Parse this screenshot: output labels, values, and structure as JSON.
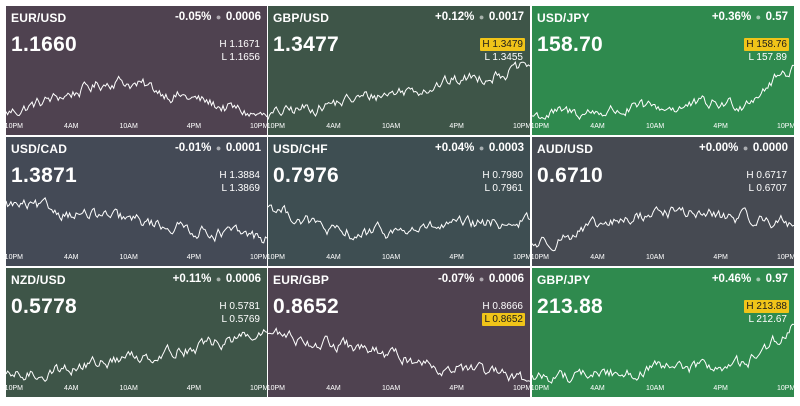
{
  "axis_ticks": [
    "10PM",
    "4AM",
    "10AM",
    "4PM",
    "10PM"
  ],
  "tiles": [
    {
      "pair": "EUR/USD",
      "change_pct": "-0.05%",
      "change_abs": "0.0006",
      "price": "1.1660",
      "high": "H 1.1671",
      "low": "L 1.1656",
      "high_highlight": false,
      "low_highlight": false,
      "bg": "#4f4250",
      "trend": "up-then-down"
    },
    {
      "pair": "GBP/USD",
      "change_pct": "+0.12%",
      "change_abs": "0.0017",
      "price": "1.3477",
      "high": "H 1.3479",
      "low": "L 1.3455",
      "high_highlight": true,
      "low_highlight": false,
      "bg": "#3e5548",
      "trend": "rising"
    },
    {
      "pair": "USD/JPY",
      "change_pct": "+0.36%",
      "change_abs": "0.57",
      "price": "158.70",
      "high": "H 158.76",
      "low": "L 157.89",
      "high_highlight": true,
      "low_highlight": false,
      "bg": "#2f8a4e",
      "trend": "late-surge"
    },
    {
      "pair": "USD/CAD",
      "change_pct": "-0.01%",
      "change_abs": "0.0001",
      "price": "1.3871",
      "high": "H 1.3884",
      "low": "L 1.3869",
      "high_highlight": false,
      "low_highlight": false,
      "bg": "#444a56",
      "trend": "choppy-down"
    },
    {
      "pair": "USD/CHF",
      "change_pct": "+0.04%",
      "change_abs": "0.0003",
      "price": "0.7976",
      "high": "H 0.7980",
      "low": "L 0.7961",
      "high_highlight": false,
      "low_highlight": false,
      "bg": "#3e4e52",
      "trend": "dip-recover"
    },
    {
      "pair": "AUD/USD",
      "change_pct": "+0.00%",
      "change_abs": "0.0000",
      "price": "0.6710",
      "high": "H 0.6717",
      "low": "L 0.6707",
      "high_highlight": false,
      "low_highlight": false,
      "bg": "#464a52",
      "trend": "mid-bump"
    },
    {
      "pair": "NZD/USD",
      "change_pct": "+0.11%",
      "change_abs": "0.0006",
      "price": "0.5778",
      "high": "H 0.5781",
      "low": "L 0.5769",
      "high_highlight": false,
      "low_highlight": false,
      "bg": "#3e5548",
      "trend": "steady-rise"
    },
    {
      "pair": "EUR/GBP",
      "change_pct": "-0.07%",
      "change_abs": "0.0006",
      "price": "0.8652",
      "high": "H 0.8666",
      "low": "L 0.8652",
      "high_highlight": false,
      "low_highlight": true,
      "bg": "#4f4250",
      "trend": "falling"
    },
    {
      "pair": "GBP/JPY",
      "change_pct": "+0.46%",
      "change_abs": "0.97",
      "price": "213.88",
      "high": "H 213.88",
      "low": "L 212.67",
      "high_highlight": true,
      "low_highlight": false,
      "bg": "#2f8a4e",
      "trend": "late-surge"
    }
  ]
}
